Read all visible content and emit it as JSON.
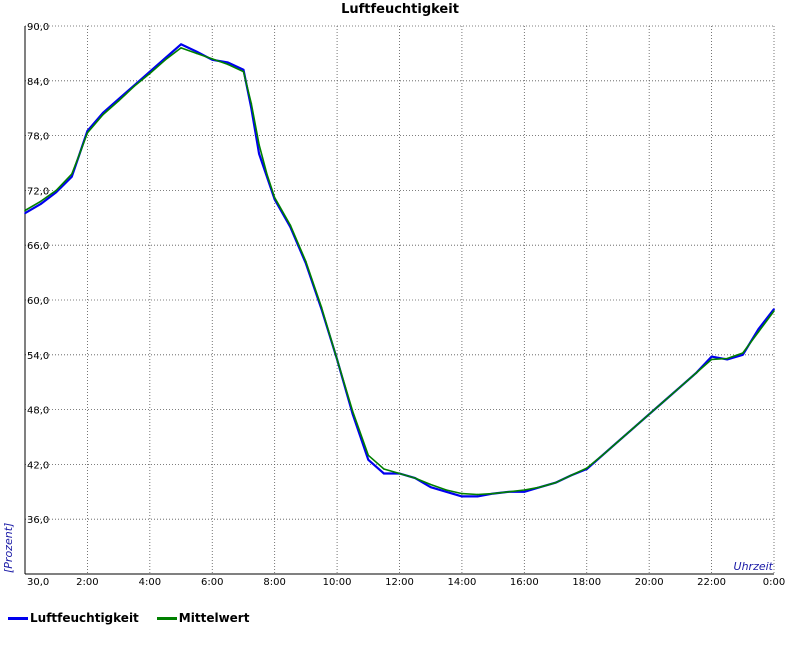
{
  "chart_data": {
    "type": "line",
    "title": "Luftfeuchtigkeit",
    "xlabel": "Uhrzeit",
    "ylabel": "[Prozent]",
    "xlim": [
      0,
      24
    ],
    "ylim": [
      30,
      90
    ],
    "yticks": [
      "30,0",
      "36,0",
      "42,0",
      "48,0",
      "54,0",
      "60,0",
      "66,0",
      "72,0",
      "78,0",
      "84,0",
      "90,0"
    ],
    "xticks": [
      "2:00",
      "4:00",
      "6:00",
      "8:00",
      "10:00",
      "12:00",
      "14:00",
      "16:00",
      "18:00",
      "20:00",
      "22:00",
      "0:00"
    ],
    "grid": true,
    "legend_position": "bottom-left",
    "series": [
      {
        "name": "Luftfeuchtigkeit",
        "color": "#0000ee",
        "x": [
          0,
          0.5,
          1,
          1.5,
          1.75,
          2,
          2.5,
          3,
          3.5,
          4,
          4.5,
          5,
          5.5,
          6,
          6.5,
          7,
          7.25,
          7.5,
          7.75,
          8,
          8.5,
          9,
          9.5,
          10,
          10.5,
          11,
          11.5,
          12,
          12.5,
          13,
          13.5,
          14,
          14.5,
          15,
          15.5,
          16,
          16.5,
          17,
          17.5,
          18,
          18.5,
          19,
          19.5,
          20,
          20.5,
          21,
          21.5,
          22,
          22.5,
          23,
          23.5,
          24
        ],
        "y": [
          69.5,
          70.5,
          71.8,
          73.5,
          76,
          78.5,
          80.5,
          82,
          83.5,
          85,
          86.5,
          88,
          87.2,
          86.3,
          86,
          85.2,
          81,
          76,
          73.5,
          71,
          68,
          64,
          59,
          53.5,
          47.5,
          42.5,
          41,
          41,
          40.5,
          39.5,
          39,
          38.5,
          38.5,
          38.8,
          39,
          39,
          39.5,
          40,
          40.8,
          41.5,
          43,
          44.5,
          46,
          47.5,
          49,
          50.5,
          52,
          53.8,
          53.5,
          54,
          56.8,
          59
        ],
        "values": [
          69.5,
          70.5,
          71.8,
          73.5,
          76,
          78.5,
          80.5,
          82,
          83.5,
          85,
          86.5,
          88,
          87.2,
          86.3,
          86,
          85.2,
          81,
          76,
          73.5,
          71,
          68,
          64,
          59,
          53.5,
          47.5,
          42.5,
          41,
          41,
          40.5,
          39.5,
          39,
          38.5,
          38.5,
          38.8,
          39,
          39,
          39.5,
          40,
          40.8,
          41.5,
          43,
          44.5,
          46,
          47.5,
          49,
          50.5,
          52,
          53.8,
          53.5,
          54,
          56.8,
          59
        ]
      },
      {
        "name": "Mittelwert",
        "color": "#008000",
        "x": [
          0,
          0.5,
          1,
          1.5,
          1.75,
          2,
          2.5,
          3,
          3.5,
          4,
          4.5,
          5,
          5.5,
          6,
          6.5,
          7,
          7.25,
          7.5,
          7.75,
          8,
          8.5,
          9,
          9.5,
          10,
          10.5,
          11,
          11.5,
          12,
          12.5,
          13,
          13.5,
          14,
          14.5,
          15,
          15.5,
          16,
          16.5,
          17,
          17.5,
          18,
          18.5,
          19,
          19.5,
          20,
          20.5,
          21,
          21.5,
          22,
          22.5,
          23,
          23.5,
          24
        ],
        "y": [
          69.8,
          70.8,
          72,
          73.8,
          76,
          78.3,
          80.3,
          81.8,
          83.4,
          84.8,
          86.3,
          87.6,
          87,
          86.4,
          85.8,
          85,
          81.5,
          77,
          73.8,
          71.2,
          68.2,
          64.2,
          59.2,
          53.5,
          47.8,
          43,
          41.5,
          41,
          40.5,
          39.8,
          39.2,
          38.8,
          38.7,
          38.8,
          39,
          39.2,
          39.5,
          40,
          40.8,
          41.6,
          43,
          44.5,
          46,
          47.5,
          49,
          50.5,
          52,
          53.5,
          53.6,
          54.2,
          56.5,
          58.8
        ],
        "values": [
          69.8,
          70.8,
          72,
          73.8,
          76,
          78.3,
          80.3,
          81.8,
          83.4,
          84.8,
          86.3,
          87.6,
          87,
          86.4,
          85.8,
          85,
          81.5,
          77,
          73.8,
          71.2,
          68.2,
          64.2,
          59.2,
          53.5,
          47.8,
          43,
          41.5,
          41,
          40.5,
          39.8,
          39.2,
          38.8,
          38.7,
          38.8,
          39,
          39.2,
          39.5,
          40,
          40.8,
          41.6,
          43,
          44.5,
          46,
          47.5,
          49,
          50.5,
          52,
          53.5,
          53.6,
          54.2,
          56.5,
          58.8
        ]
      }
    ]
  }
}
